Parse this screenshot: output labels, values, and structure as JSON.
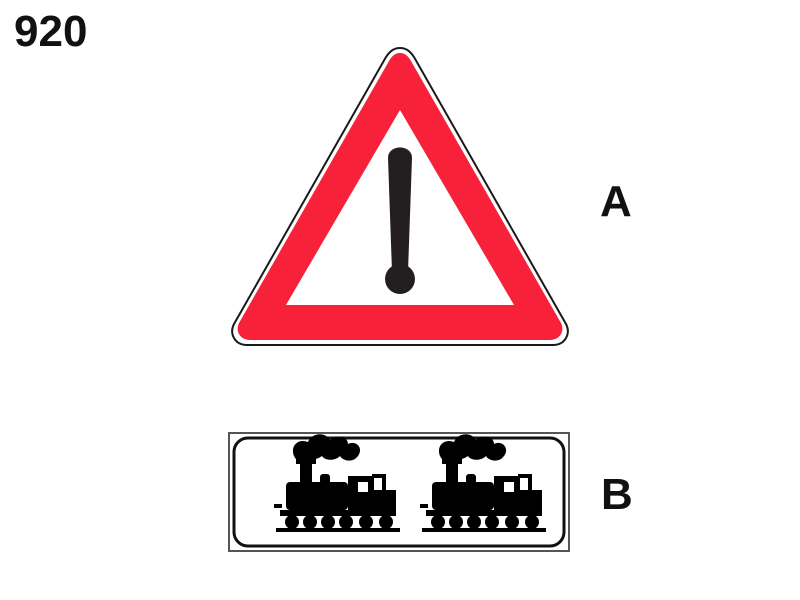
{
  "question": {
    "number": "920"
  },
  "options": [
    {
      "label": "A",
      "sign": "danger-warning-triangle",
      "symbol": "exclamation-mark-icon",
      "colors": {
        "border": "#f7223a",
        "background": "#ffffff",
        "symbol": "#231f20"
      }
    },
    {
      "label": "B",
      "sign": "supplementary-panel-two-steam-locomotives",
      "symbol": "steam-locomotive-icon",
      "colors": {
        "border": "#111111",
        "background": "#ffffff",
        "symbol": "#000000"
      }
    }
  ]
}
